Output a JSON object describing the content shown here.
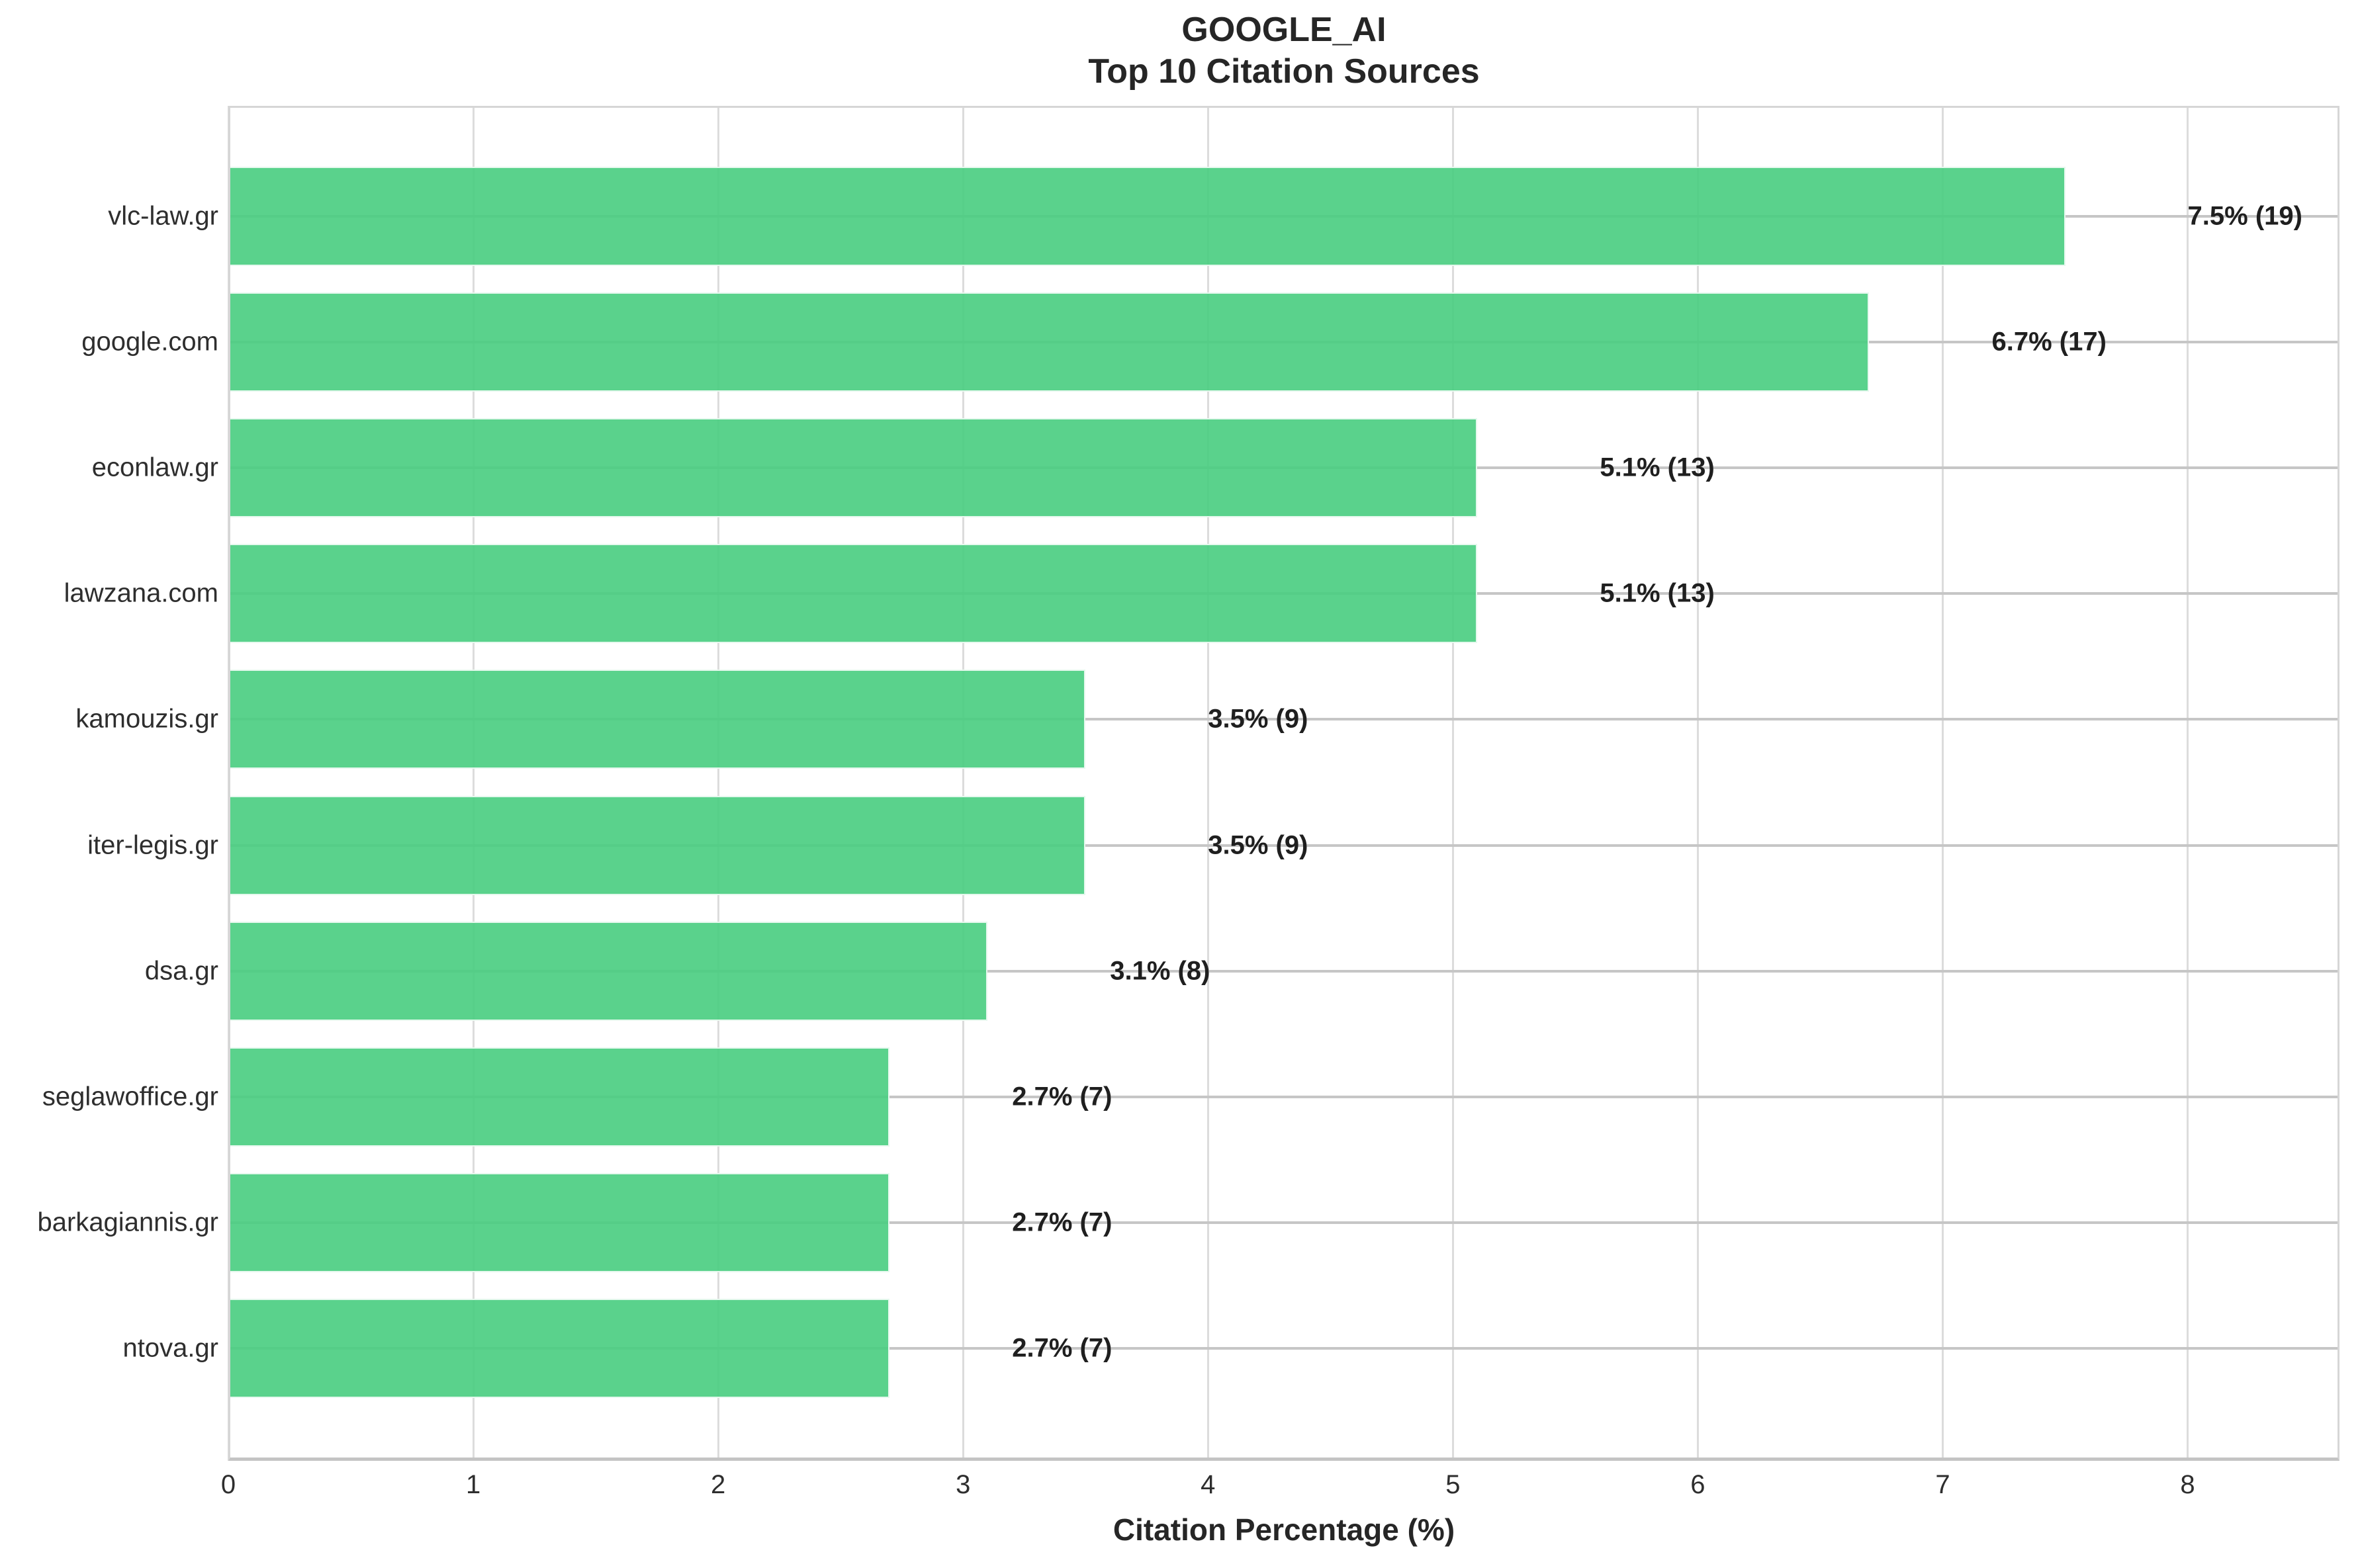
{
  "chart_data": {
    "type": "bar",
    "orientation": "horizontal",
    "title": "GOOGLE_AI",
    "subtitle": "Top 10 Citation Sources",
    "xlabel": "Citation Percentage (%)",
    "ylabel": "",
    "categories": [
      "vlc-law.gr",
      "google.com",
      "econlaw.gr",
      "lawzana.com",
      "kamouzis.gr",
      "iter-legis.gr",
      "dsa.gr",
      "seglawoffice.gr",
      "barkagiannis.gr",
      "ntova.gr"
    ],
    "values": [
      7.5,
      6.7,
      5.1,
      5.1,
      3.5,
      3.5,
      3.1,
      2.7,
      2.7,
      2.7
    ],
    "counts": [
      19,
      17,
      13,
      13,
      9,
      9,
      8,
      7,
      7,
      7
    ],
    "bar_labels": [
      "7.5% (19)",
      "6.7% (17)",
      "5.1% (13)",
      "5.1% (13)",
      "3.5% (9)",
      "3.5% (9)",
      "3.1% (8)",
      "2.7% (7)",
      "2.7% (7)",
      "2.7% (7)"
    ],
    "xticks": [
      "0",
      "1",
      "2",
      "3",
      "4",
      "5",
      "6",
      "7",
      "8"
    ],
    "xlim": [
      0,
      8.62
    ],
    "value_label_offset_units": 0.5,
    "grid": true,
    "legend": false,
    "colors": {
      "bar": "rgba(72,205,127,0.9)",
      "grid_horizontal": "#c6c6c6",
      "grid_vertical": "#dcdcdc",
      "spine": "#d6d6d6",
      "bottom_spine": "#c4c4c4",
      "text": "#262626",
      "background": "#ffffff"
    }
  }
}
